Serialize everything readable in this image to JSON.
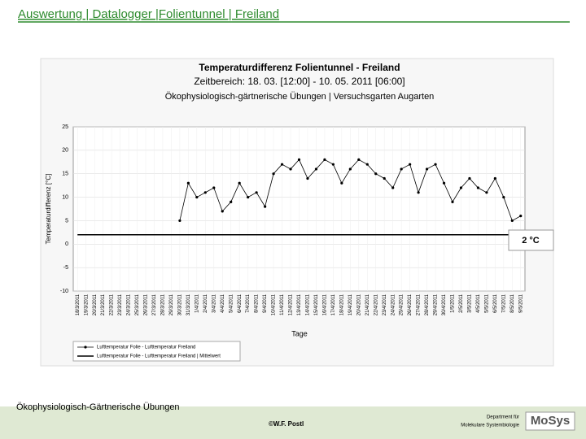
{
  "slide": {
    "header": "Auswertung | Datalogger |Folientunnel | Freiland",
    "footer_left": "Ökophysiologisch-Gärtnerische Übungen",
    "copyright": "©W.F. Postl",
    "department": [
      "Department für",
      "Molekulare Systembiologie"
    ],
    "logo": "MoSys"
  },
  "chart_data": {
    "type": "line",
    "title": "Temperaturdifferenz Folientunnel - Freiland",
    "subtitle": [
      "Zeitbereich: 18. 03. [12:00] - 10. 05. 2011 [06:00]",
      "Ökophysiologisch-gärtnerische Übungen | Versuchsgarten Augarten"
    ],
    "x_label": "Tage",
    "y_label": "Temperaturdifferenz [°C]",
    "annotation": "2 °C",
    "categories": [
      "18/3/2011",
      "19/3/2011",
      "20/3/2011",
      "21/3/2011",
      "22/3/2011",
      "23/3/2011",
      "24/3/2011",
      "25/3/2011",
      "26/3/2011",
      "27/3/2011",
      "28/3/2011",
      "29/3/2011",
      "30/3/2011",
      "31/3/2011",
      "1/4/2011",
      "2/4/2011",
      "3/4/2011",
      "4/4/2011",
      "5/4/2011",
      "6/4/2011",
      "7/4/2011",
      "8/4/2011",
      "9/4/2011",
      "10/4/2011",
      "11/4/2011",
      "12/4/2011",
      "13/4/2011",
      "14/4/2011",
      "15/4/2011",
      "16/4/2011",
      "17/4/2011",
      "18/4/2011",
      "19/4/2011",
      "20/4/2011",
      "21/4/2011",
      "22/4/2011",
      "23/4/2011",
      "24/4/2011",
      "25/4/2011",
      "26/4/2011",
      "27/4/2011",
      "28/4/2011",
      "29/4/2011",
      "30/4/2011",
      "1/5/2011",
      "2/5/2011",
      "3/5/2011",
      "4/5/2011",
      "5/5/2011",
      "6/5/2011",
      "7/5/2011",
      "8/5/2011",
      "9/5/2011"
    ],
    "series": [
      {
        "name": "Lufttemperatur Folie - Lufttemperatur Freiland",
        "color": "#000000",
        "markers": true,
        "values": [
          null,
          null,
          null,
          null,
          null,
          null,
          null,
          null,
          null,
          null,
          null,
          null,
          5,
          13,
          10,
          11,
          12,
          7,
          9,
          13,
          10,
          11,
          8,
          15,
          17,
          16,
          18,
          14,
          16,
          18,
          17,
          13,
          16,
          18,
          17,
          15,
          14,
          12,
          16,
          17,
          11,
          16,
          17,
          13,
          9,
          12,
          14,
          12,
          11,
          14,
          10,
          5,
          6
        ]
      },
      {
        "name": "Lufttemperatur Folie - Lufttemperatur Freiland | Mittelwert",
        "color": "#000000",
        "markers": false,
        "values": [
          2,
          2,
          2,
          2,
          2,
          2,
          2,
          2,
          2,
          2,
          2,
          2,
          2,
          2,
          2,
          2,
          2,
          2,
          2,
          2,
          2,
          2,
          2,
          2,
          2,
          2,
          2,
          2,
          2,
          2,
          2,
          2,
          2,
          2,
          2,
          2,
          2,
          2,
          2,
          2,
          2,
          2,
          2,
          2,
          2,
          2,
          2,
          2,
          2,
          2,
          2,
          2,
          2
        ]
      }
    ],
    "ylim": [
      -10,
      25
    ],
    "yticks": [
      -10,
      -5,
      0,
      5,
      10,
      15,
      20,
      25
    ],
    "grid": true
  }
}
